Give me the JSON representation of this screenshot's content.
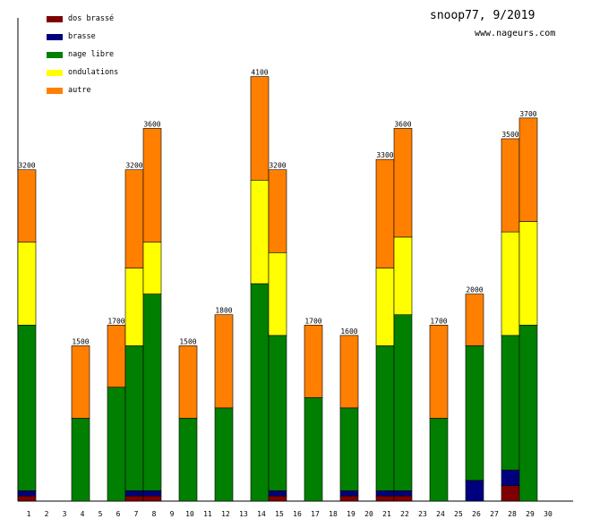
{
  "header": {
    "title": "snoop77, 9/2019",
    "url": "www.nageurs.com"
  },
  "legend": [
    {
      "label": "dos brassé",
      "color": "#7f0000"
    },
    {
      "label": "brasse",
      "color": "#00007f"
    },
    {
      "label": "nage libre",
      "color": "#007f00"
    },
    {
      "label": "ondulations",
      "color": "#ffff00"
    },
    {
      "label": "autre",
      "color": "#ff7f00"
    }
  ],
  "chart_data": {
    "type": "bar",
    "stacked": true,
    "title": "snoop77, 9/2019",
    "xlabel": "",
    "ylabel": "",
    "ylim": [
      0,
      4200
    ],
    "categories": [
      "1",
      "2",
      "3",
      "4",
      "5",
      "6",
      "7",
      "8",
      "9",
      "10",
      "11",
      "12",
      "13",
      "14",
      "15",
      "16",
      "17",
      "18",
      "19",
      "20",
      "21",
      "22",
      "23",
      "24",
      "25",
      "26",
      "27",
      "28",
      "29",
      "30"
    ],
    "totals": [
      3200,
      0,
      0,
      1500,
      0,
      1700,
      3200,
      3600,
      0,
      1500,
      0,
      1800,
      0,
      4100,
      3200,
      0,
      1700,
      0,
      1600,
      0,
      3300,
      3600,
      0,
      1700,
      0,
      2000,
      0,
      3500,
      3700,
      0
    ],
    "series": [
      {
        "name": "dos brassé",
        "color": "#7f0000",
        "values": [
          50,
          0,
          0,
          0,
          0,
          0,
          50,
          50,
          0,
          0,
          0,
          0,
          0,
          0,
          50,
          0,
          0,
          0,
          50,
          0,
          50,
          50,
          0,
          0,
          0,
          0,
          0,
          150,
          0,
          0
        ]
      },
      {
        "name": "brasse",
        "color": "#00007f",
        "values": [
          50,
          0,
          0,
          0,
          0,
          0,
          50,
          50,
          0,
          0,
          0,
          0,
          0,
          0,
          50,
          0,
          0,
          0,
          50,
          0,
          50,
          50,
          0,
          0,
          0,
          200,
          0,
          150,
          0,
          0
        ]
      },
      {
        "name": "nage libre",
        "color": "#007f00",
        "values": [
          1600,
          0,
          0,
          800,
          0,
          1100,
          1400,
          1900,
          0,
          800,
          0,
          900,
          0,
          2100,
          1500,
          0,
          1000,
          0,
          800,
          0,
          1400,
          1700,
          0,
          800,
          0,
          1300,
          0,
          1300,
          1700,
          0
        ]
      },
      {
        "name": "ondulations",
        "color": "#ffff00",
        "values": [
          800,
          0,
          0,
          0,
          0,
          0,
          750,
          500,
          0,
          0,
          0,
          0,
          0,
          1000,
          800,
          0,
          0,
          0,
          0,
          0,
          750,
          750,
          0,
          0,
          0,
          0,
          0,
          1000,
          1000,
          0
        ]
      },
      {
        "name": "autre",
        "color": "#ff7f00",
        "values": [
          700,
          0,
          0,
          700,
          0,
          600,
          950,
          1100,
          0,
          700,
          0,
          900,
          0,
          1000,
          800,
          0,
          700,
          0,
          700,
          0,
          1050,
          1050,
          0,
          900,
          0,
          500,
          0,
          900,
          1000,
          0
        ]
      }
    ]
  }
}
